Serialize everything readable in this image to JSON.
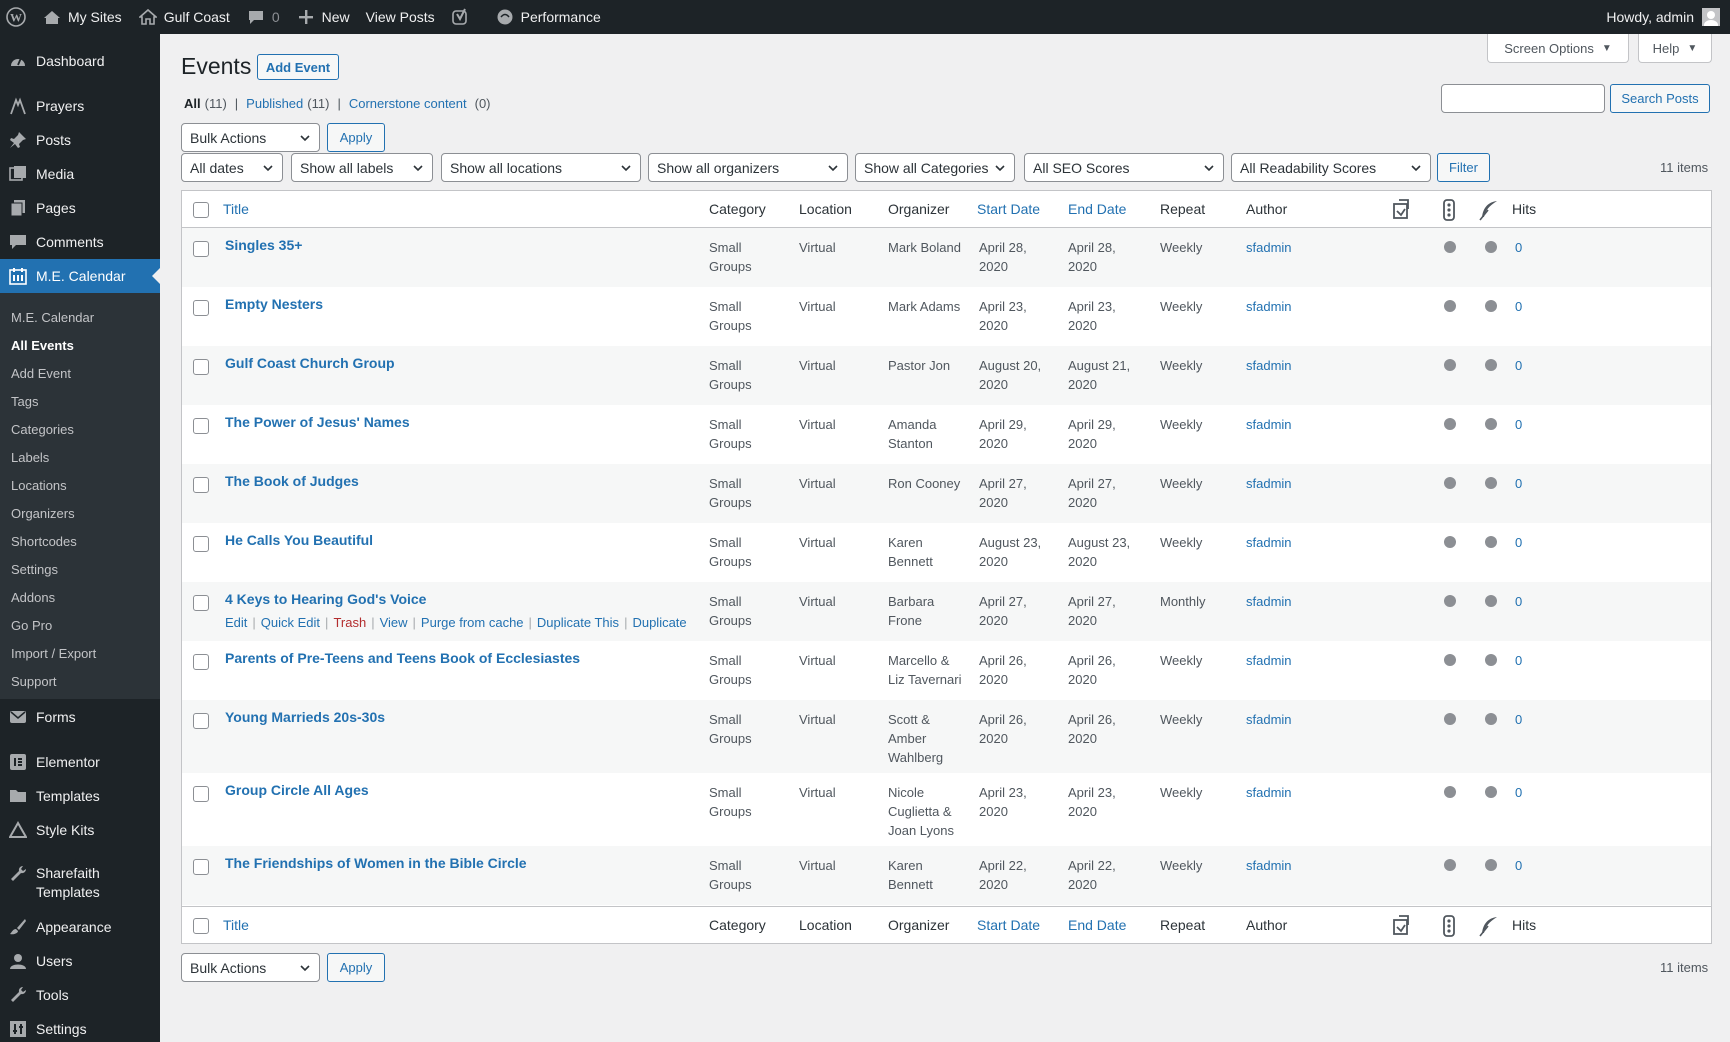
{
  "adminbar": {
    "my_sites": "My Sites",
    "site_name": "Gulf Coast",
    "comments_count": "0",
    "new_label": "New",
    "view_posts": "View Posts",
    "performance": "Performance",
    "howdy": "Howdy, admin"
  },
  "sidebar": {
    "dashboard": "Dashboard",
    "prayers": "Prayers",
    "posts": "Posts",
    "media": "Media",
    "pages": "Pages",
    "comments": "Comments",
    "me_calendar": "M.E. Calendar",
    "submenu": [
      "M.E. Calendar",
      "All Events",
      "Add Event",
      "Tags",
      "Categories",
      "Labels",
      "Locations",
      "Organizers",
      "Shortcodes",
      "Settings",
      "Addons",
      "Go Pro",
      "Import / Export",
      "Support"
    ],
    "forms": "Forms",
    "elementor": "Elementor",
    "templates": "Templates",
    "style_kits": "Style Kits",
    "sharefaith_line1": "Sharefaith",
    "sharefaith_line2": "Templates",
    "appearance": "Appearance",
    "users": "Users",
    "tools": "Tools",
    "settings": "Settings"
  },
  "header": {
    "title": "Events",
    "add_event": "Add Event",
    "screen_options": "Screen Options",
    "help": "Help",
    "search_button": "Search Posts",
    "search_value": ""
  },
  "views": {
    "all": "All",
    "all_count": "(11)",
    "published": "Published",
    "published_count": "(11)",
    "cornerstone": "Cornerstone content",
    "cornerstone_count": "(0)"
  },
  "filters": {
    "bulk_actions": "Bulk Actions",
    "apply": "Apply",
    "dates": "All dates",
    "labels": "Show all labels",
    "locations": "Show all locations",
    "organizers": "Show all organizers",
    "categories": "Show all Categories",
    "seo": "All SEO Scores",
    "readability": "All Readability Scores",
    "filter_button": "Filter",
    "items_count": "11 items"
  },
  "columns": {
    "title": "Title",
    "category": "Category",
    "location": "Location",
    "organizer": "Organizer",
    "start_date": "Start Date",
    "end_date": "End Date",
    "repeat": "Repeat",
    "author": "Author",
    "hits": "Hits"
  },
  "row_actions": [
    "Edit",
    "Quick Edit",
    "Trash",
    "View",
    "Purge from cache",
    "Duplicate This",
    "Duplicate"
  ],
  "events": [
    {
      "title": "Singles 35+",
      "category": [
        "Small",
        "Groups"
      ],
      "location": "Virtual",
      "organizer": [
        "Mark Boland"
      ],
      "start": [
        "April 28,",
        "2020"
      ],
      "end": [
        "April 28,",
        "2020"
      ],
      "repeat": "Weekly",
      "author": "sfadmin",
      "hits": "0"
    },
    {
      "title": "Empty Nesters",
      "category": [
        "Small",
        "Groups"
      ],
      "location": "Virtual",
      "organizer": [
        "Mark Adams"
      ],
      "start": [
        "April 23,",
        "2020"
      ],
      "end": [
        "April 23,",
        "2020"
      ],
      "repeat": "Weekly",
      "author": "sfadmin",
      "hits": "0"
    },
    {
      "title": "Gulf Coast Church Group",
      "category": [
        "Small",
        "Groups"
      ],
      "location": "Virtual",
      "organizer": [
        "Pastor Jon"
      ],
      "start": [
        "August 20,",
        "2020"
      ],
      "end": [
        "August 21,",
        "2020"
      ],
      "repeat": "Weekly",
      "author": "sfadmin",
      "hits": "0"
    },
    {
      "title": "The Power of Jesus' Names",
      "category": [
        "Small",
        "Groups"
      ],
      "location": "Virtual",
      "organizer": [
        "Amanda",
        "Stanton"
      ],
      "start": [
        "April 29,",
        "2020"
      ],
      "end": [
        "April 29,",
        "2020"
      ],
      "repeat": "Weekly",
      "author": "sfadmin",
      "hits": "0"
    },
    {
      "title": "The Book of Judges",
      "category": [
        "Small",
        "Groups"
      ],
      "location": "Virtual",
      "organizer": [
        "Ron Cooney"
      ],
      "start": [
        "April 27,",
        "2020"
      ],
      "end": [
        "April 27,",
        "2020"
      ],
      "repeat": "Weekly",
      "author": "sfadmin",
      "hits": "0"
    },
    {
      "title": "He Calls You Beautiful",
      "category": [
        "Small",
        "Groups"
      ],
      "location": "Virtual",
      "organizer": [
        "Karen",
        "Bennett"
      ],
      "start": [
        "August 23,",
        "2020"
      ],
      "end": [
        "August 23,",
        "2020"
      ],
      "repeat": "Weekly",
      "author": "sfadmin",
      "hits": "0"
    },
    {
      "title": "4 Keys to Hearing God's Voice",
      "category": [
        "Small",
        "Groups"
      ],
      "location": "Virtual",
      "organizer": [
        "Barbara",
        "Frone"
      ],
      "start": [
        "April 27,",
        "2020"
      ],
      "end": [
        "April 27,",
        "2020"
      ],
      "repeat": "Monthly",
      "author": "sfadmin",
      "hits": "0"
    },
    {
      "title": "Parents of Pre-Teens and Teens Book of Ecclesiastes",
      "category": [
        "Small",
        "Groups"
      ],
      "location": "Virtual",
      "organizer": [
        "Marcello &",
        "Liz Tavernari"
      ],
      "start": [
        "April 26,",
        "2020"
      ],
      "end": [
        "April 26,",
        "2020"
      ],
      "repeat": "Weekly",
      "author": "sfadmin",
      "hits": "0"
    },
    {
      "title": "Young Marrieds 20s-30s",
      "category": [
        "Small",
        "Groups"
      ],
      "location": "Virtual",
      "organizer": [
        "Scott &",
        "Amber",
        "Wahlberg"
      ],
      "start": [
        "April 26,",
        "2020"
      ],
      "end": [
        "April 26,",
        "2020"
      ],
      "repeat": "Weekly",
      "author": "sfadmin",
      "hits": "0"
    },
    {
      "title": "Group Circle All Ages",
      "category": [
        "Small",
        "Groups"
      ],
      "location": "Virtual",
      "organizer": [
        "Nicole",
        "Cuglietta &",
        "Joan Lyons"
      ],
      "start": [
        "April 23,",
        "2020"
      ],
      "end": [
        "April 23,",
        "2020"
      ],
      "repeat": "Weekly",
      "author": "sfadmin",
      "hits": "0"
    },
    {
      "title": "The Friendships of Women in the Bible Circle",
      "category": [
        "Small",
        "Groups"
      ],
      "location": "Virtual",
      "organizer": [
        "Karen",
        "Bennett"
      ],
      "start": [
        "April 22,",
        "2020"
      ],
      "end": [
        "April 22,",
        "2020"
      ],
      "repeat": "Weekly",
      "author": "sfadmin",
      "hits": "0"
    }
  ],
  "colors": {
    "admin_bg": "#1d2327",
    "accent": "#2271b1",
    "trash": "#b32d2e",
    "alt_row": "#f6f7f7"
  }
}
